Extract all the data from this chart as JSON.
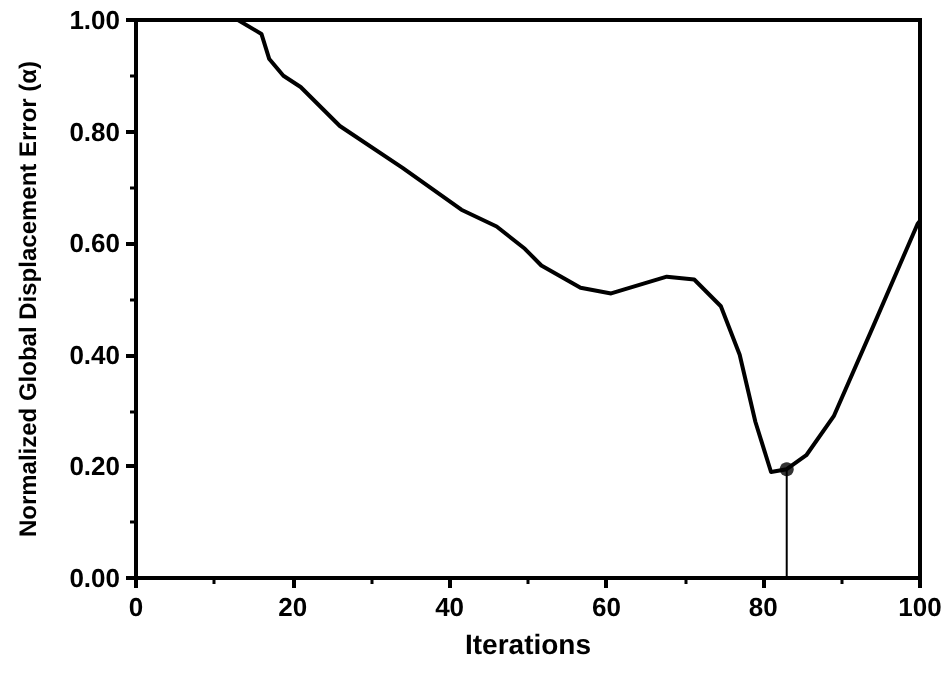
{
  "chart_data": {
    "type": "line",
    "xlabel": "Iterations",
    "ylabel": "Normalized Global Displacement Error (α)",
    "xlim": [
      0,
      100
    ],
    "xticks": [
      0,
      20,
      40,
      60,
      80,
      100
    ],
    "ylim": [
      0,
      1
    ],
    "yticks": [
      {
        "value": 0,
        "label": "0.00"
      },
      {
        "value": 0.2,
        "label": "0.20"
      },
      {
        "value": 0.4,
        "label": "0.40"
      },
      {
        "value": 0.6,
        "label": "0.60"
      },
      {
        "value": 0.8,
        "label": "0.80"
      },
      {
        "value": 1,
        "label": "1.00"
      }
    ],
    "grid": false,
    "series": [
      {
        "color": "#000000",
        "marker": "none",
        "x": [
          13,
          16,
          17,
          18.8,
          21,
          26,
          34,
          41.5,
          46,
          49.6,
          51.7,
          56.7,
          60.6,
          67.7,
          71.2,
          74.6,
          77,
          79,
          81,
          83,
          85.5,
          89,
          94,
          99.7,
          100
        ],
        "values": [
          1.0,
          0.975,
          0.93,
          0.9,
          0.88,
          0.81,
          0.735,
          0.66,
          0.63,
          0.59,
          0.56,
          0.52,
          0.51,
          0.54,
          0.535,
          0.487,
          0.4,
          0.28,
          0.19,
          0.195,
          0.22,
          0.29,
          0.45,
          0.635,
          0.64
        ]
      },
      {
        "color": "#000000",
        "marker": "none",
        "x": [
          83,
          83
        ],
        "values": [
          0,
          0.195
        ]
      },
      {
        "type": "scatter",
        "color": "#000000",
        "marker": "circle",
        "x": [
          83
        ],
        "values": [
          0.195
        ]
      }
    ]
  }
}
